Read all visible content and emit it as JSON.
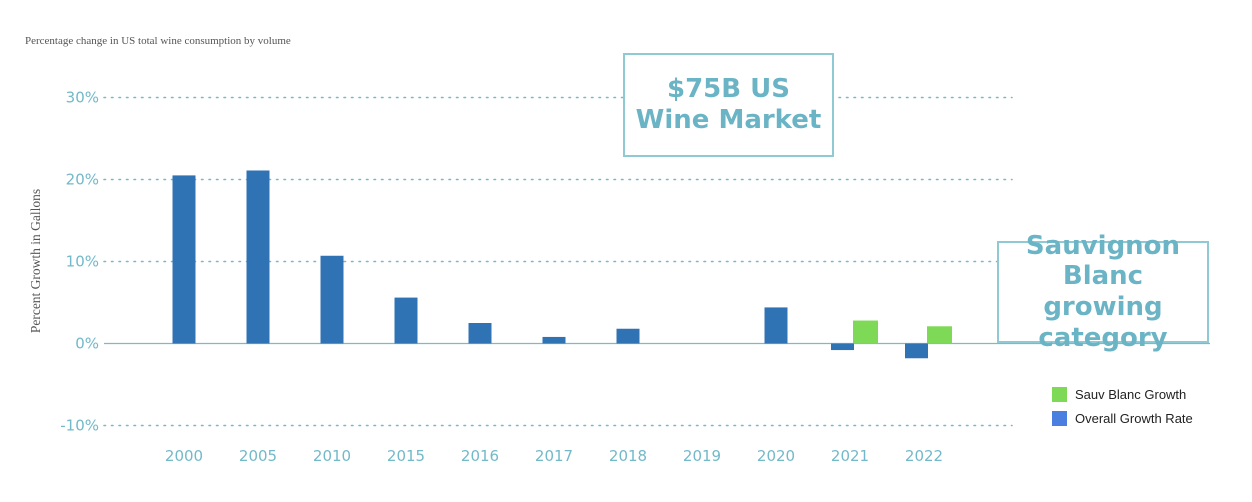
{
  "chart_data": {
    "type": "bar",
    "subtitle": "Percentage change in US total wine consumption by volume",
    "ylabel": "Percent Growth in Gallons",
    "xlabel": "",
    "ylim": [
      -10,
      30
    ],
    "yticks": [
      {
        "value": 30,
        "label": "30%"
      },
      {
        "value": 20,
        "label": "20%"
      },
      {
        "value": 10,
        "label": "10%"
      },
      {
        "value": 0,
        "label": "0%"
      },
      {
        "value": -10,
        "label": "-10%"
      }
    ],
    "categories": [
      "2000",
      "2005",
      "2010",
      "2015",
      "2016",
      "2017",
      "2018",
      "2019",
      "2020",
      "2021",
      "2022"
    ],
    "series": [
      {
        "name": "Overall Growth Rate",
        "color": "#3073b5",
        "values": [
          20.5,
          21.1,
          10.7,
          5.6,
          2.5,
          0.8,
          1.8,
          0.0,
          4.4,
          -0.8,
          -1.8
        ]
      },
      {
        "name": "Sauv Blanc Growth",
        "color": "#7ed957",
        "values": [
          null,
          null,
          null,
          null,
          null,
          null,
          null,
          null,
          null,
          2.8,
          2.1
        ]
      }
    ],
    "legend": [
      {
        "label": "Sauv Blanc Growth",
        "color": "#7ed957"
      },
      {
        "label": "Overall Growth Rate",
        "color": "#4a7fe0"
      }
    ],
    "legend_position": "bottom-right",
    "grid": true,
    "annotations": {
      "market": [
        "$75B US",
        "Wine Market"
      ],
      "sauv": [
        "Sauvignon",
        "Blanc growing",
        "category"
      ]
    }
  }
}
